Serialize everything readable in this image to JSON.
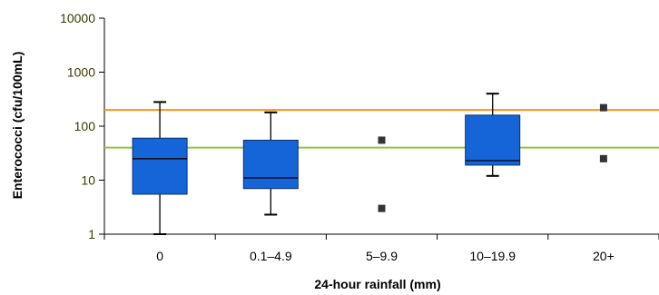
{
  "chart_data": {
    "type": "box",
    "xlabel": "24-hour rainfall (mm)",
    "ylabel": "Enterococci (cfu/100mL)",
    "yscale": "log",
    "ylim": [
      1,
      10000
    ],
    "yticks": [
      1,
      10,
      100,
      1000,
      10000
    ],
    "ytick_labels": [
      "1",
      "10",
      "100",
      "1000",
      "10000"
    ],
    "categories": [
      "0",
      "0.1–4.9",
      "5–9.9",
      "10–19.9",
      "20+"
    ],
    "boxes": [
      {
        "category": "0",
        "whisker_low": 1,
        "q1": 5.5,
        "median": 25,
        "q3": 60,
        "whisker_high": 280
      },
      {
        "category": "0.1–4.9",
        "whisker_low": 2.3,
        "q1": 7,
        "median": 11,
        "q3": 55,
        "whisker_high": 180
      },
      {
        "category": "10–19.9",
        "whisker_low": 12,
        "q1": 19,
        "median": 23,
        "q3": 160,
        "whisker_high": 400
      }
    ],
    "points": [
      {
        "category": "5–9.9",
        "y": 55
      },
      {
        "category": "5–9.9",
        "y": 3
      },
      {
        "category": "20+",
        "y": 220
      },
      {
        "category": "20+",
        "y": 25
      }
    ],
    "reference_lines": [
      {
        "y": 200,
        "color": "#f7941d"
      },
      {
        "y": 40,
        "color": "#8dc63f"
      }
    ],
    "box_color": "#1565d8",
    "box_edge_color": "#0a2f6e",
    "point_color": "#333333",
    "grid": false,
    "legend": false
  }
}
